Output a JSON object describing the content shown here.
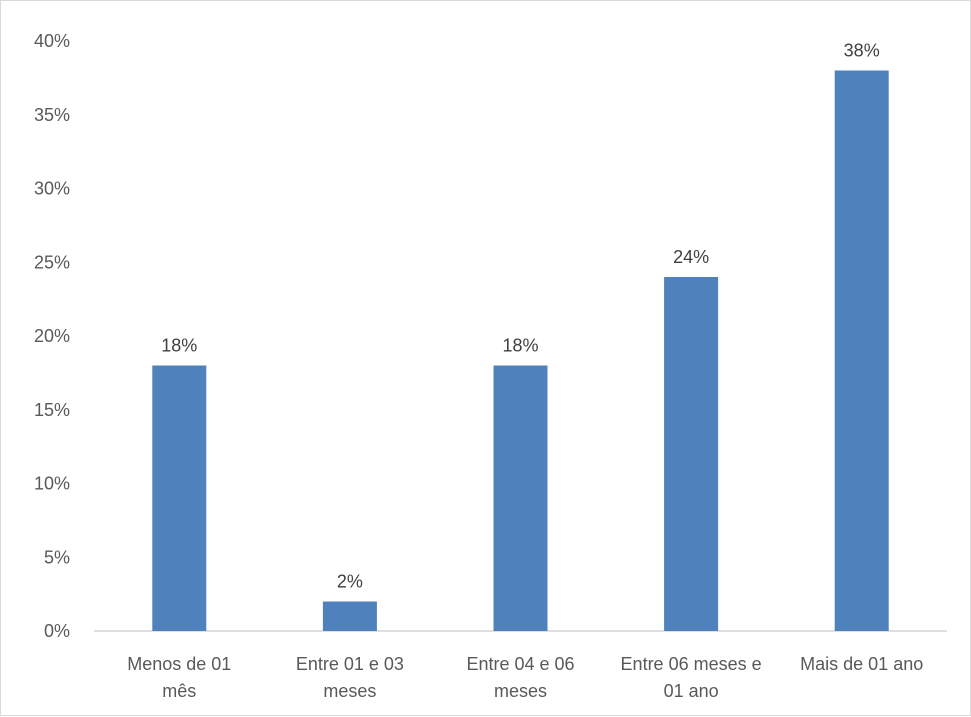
{
  "chart_data": {
    "type": "bar",
    "title": "",
    "xlabel": "",
    "ylabel": "",
    "categories": [
      [
        "Menos de 01",
        "mês"
      ],
      [
        "Entre 01 e 03",
        "meses"
      ],
      [
        "Entre 04 e 06",
        "meses"
      ],
      [
        "Entre 06 meses e",
        "01 ano"
      ],
      [
        "Mais de 01 ano"
      ]
    ],
    "values": [
      18,
      2,
      18,
      24,
      38
    ],
    "value_labels": [
      "18%",
      "2%",
      "18%",
      "24%",
      "38%"
    ],
    "ylim": [
      0,
      40
    ],
    "yticks": [
      0,
      5,
      10,
      15,
      20,
      25,
      30,
      35,
      40
    ],
    "ytick_labels": [
      "0%",
      "5%",
      "10%",
      "15%",
      "20%",
      "25%",
      "30%",
      "35%",
      "40%"
    ],
    "grid": false,
    "legend": "none",
    "bar_color": "#4f81bd",
    "axis_color": "#bfbfbf"
  }
}
